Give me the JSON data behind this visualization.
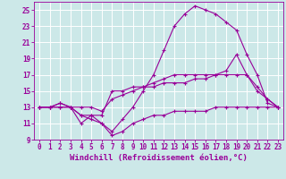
{
  "xlabel": "Windchill (Refroidissement éolien,°C)",
  "bg_color": "#cce8e8",
  "grid_color": "#ffffff",
  "line_color": "#990099",
  "xlim": [
    -0.5,
    23.5
  ],
  "ylim": [
    9,
    26
  ],
  "xticks": [
    0,
    1,
    2,
    3,
    4,
    5,
    6,
    7,
    8,
    9,
    10,
    11,
    12,
    13,
    14,
    15,
    16,
    17,
    18,
    19,
    20,
    21,
    22,
    23
  ],
  "yticks": [
    9,
    11,
    13,
    15,
    17,
    19,
    21,
    23,
    25
  ],
  "series": [
    {
      "x": [
        0,
        1,
        2,
        3,
        4,
        5,
        6,
        7,
        8,
        9,
        10,
        11,
        12,
        13,
        14,
        15,
        16,
        17,
        18,
        19,
        20,
        21,
        22,
        23
      ],
      "y": [
        13,
        13,
        13,
        13,
        12,
        11.5,
        11,
        9.5,
        10,
        11,
        11.5,
        12,
        12,
        12.5,
        12.5,
        12.5,
        12.5,
        13,
        13,
        13,
        13,
        13,
        13,
        13
      ]
    },
    {
      "x": [
        0,
        1,
        2,
        3,
        4,
        5,
        6,
        7,
        8,
        9,
        10,
        11,
        12,
        13,
        14,
        15,
        16,
        17,
        18,
        19,
        20,
        21,
        22,
        23
      ],
      "y": [
        13,
        13,
        13.5,
        13,
        12,
        12,
        12,
        15,
        15,
        15.5,
        15.5,
        15.5,
        16,
        16,
        16,
        16.5,
        16.5,
        17,
        17,
        17,
        17,
        15,
        14,
        13
      ]
    },
    {
      "x": [
        0,
        1,
        2,
        3,
        4,
        5,
        6,
        7,
        8,
        9,
        10,
        11,
        12,
        13,
        14,
        15,
        16,
        17,
        18,
        19,
        20,
        21,
        22,
        23
      ],
      "y": [
        13,
        13,
        13,
        13,
        11,
        12,
        11,
        10,
        11.5,
        13,
        15,
        17,
        20,
        23,
        24.5,
        25.5,
        25,
        24.5,
        23.5,
        22.5,
        19.5,
        17,
        13.5,
        13
      ]
    },
    {
      "x": [
        0,
        1,
        2,
        3,
        4,
        5,
        6,
        7,
        8,
        9,
        10,
        11,
        12,
        13,
        14,
        15,
        16,
        17,
        18,
        19,
        20,
        21,
        22,
        23
      ],
      "y": [
        13,
        13,
        13.5,
        13,
        13,
        13,
        12.5,
        14,
        14.5,
        15,
        15.5,
        16,
        16.5,
        17,
        17,
        17,
        17,
        17,
        17.5,
        19.5,
        17,
        15.5,
        14,
        13
      ]
    }
  ],
  "tick_fontsize": 5.5,
  "label_fontsize": 6.5
}
